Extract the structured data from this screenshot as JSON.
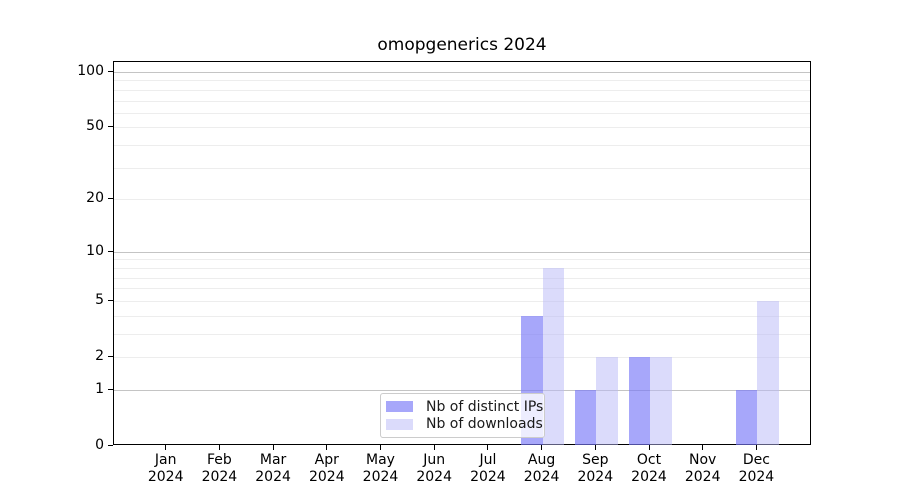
{
  "title": "omopgenerics 2024",
  "legend": {
    "items": [
      {
        "label": "Nb of distinct IPs"
      },
      {
        "label": "Nb of downloads"
      }
    ]
  },
  "colors": {
    "distinct_ips_bar": "rgba(120,120,247,0.65)",
    "downloads_bar": "rgba(183,183,247,0.5)",
    "grid_major": "#c4c4c4",
    "grid_minor": "#ededed",
    "spine": "#000000",
    "legend_border": "#cccccc"
  },
  "chart_data": {
    "type": "bar",
    "title": "omopgenerics 2024",
    "categories": [
      "Jan 2024",
      "Feb 2024",
      "Mar 2024",
      "Apr 2024",
      "May 2024",
      "Jun 2024",
      "Jul 2024",
      "Aug 2024",
      "Sep 2024",
      "Oct 2024",
      "Nov 2024",
      "Dec 2024"
    ],
    "series": [
      {
        "name": "Nb of distinct IPs",
        "values": [
          0,
          0,
          0,
          0,
          0,
          0,
          0,
          4,
          1,
          2,
          0,
          1
        ]
      },
      {
        "name": "Nb of downloads",
        "values": [
          0,
          0,
          0,
          0,
          0,
          0,
          0,
          8,
          2,
          2,
          0,
          5
        ]
      }
    ],
    "xlabel": "",
    "ylabel": "",
    "yscale": "log1p",
    "ylim": [
      0,
      115
    ],
    "y_ticks_labeled": [
      0,
      1,
      2,
      5,
      10,
      20,
      50,
      100
    ],
    "y_grid_major": [
      1,
      10,
      100
    ],
    "y_grid_minor": [
      2,
      3,
      4,
      5,
      6,
      7,
      8,
      9,
      20,
      30,
      40,
      50,
      60,
      70,
      80,
      90
    ],
    "grid": true,
    "legend_position": "lower-center"
  }
}
